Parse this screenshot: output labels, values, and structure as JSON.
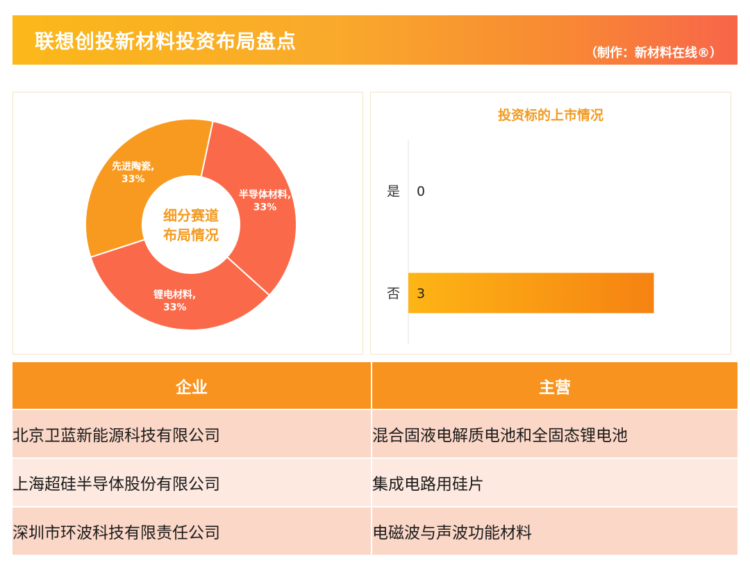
{
  "header": {
    "title": "联想创投新材料投资布局盘点",
    "credit": "（制作：新材料在线®）"
  },
  "donut": {
    "center_label_line1": "细分赛道",
    "center_label_line2": "布局情况",
    "colors": {
      "orange": "#f89a1f",
      "red": "#fa6a4a",
      "center_text": "#f39a20"
    }
  },
  "chart_data": [
    {
      "type": "pie",
      "title": "",
      "slices": [
        {
          "label": "半导体材料",
          "value": 33,
          "pct_label": "33%",
          "color": "#fa6a4a"
        },
        {
          "label": "锂电材料",
          "value": 33,
          "pct_label": "33%",
          "color": "#fa6a4a"
        },
        {
          "label": "先进陶瓷",
          "value": 33,
          "pct_label": "33%",
          "color": "#f89a1f"
        }
      ]
    },
    {
      "type": "bar",
      "orientation": "horizontal",
      "title": "投资标的上市情况",
      "categories": [
        "是",
        "否"
      ],
      "values": [
        0,
        3
      ],
      "xlim": [
        0,
        3.7
      ],
      "grid": false,
      "colors": {
        "bar_start": "#fdb515",
        "bar_end": "#f68212"
      }
    }
  ],
  "table": {
    "headers": [
      "企业",
      "主营"
    ],
    "rows": [
      [
        "北京卫蓝新能源科技有限公司",
        "混合固液电解质电池和全固态锂电池"
      ],
      [
        "上海超硅半导体股份有限公司",
        "集成电路用硅片"
      ],
      [
        "深圳市环波科技有限责任公司",
        "电磁波与声波功能材料"
      ]
    ]
  }
}
